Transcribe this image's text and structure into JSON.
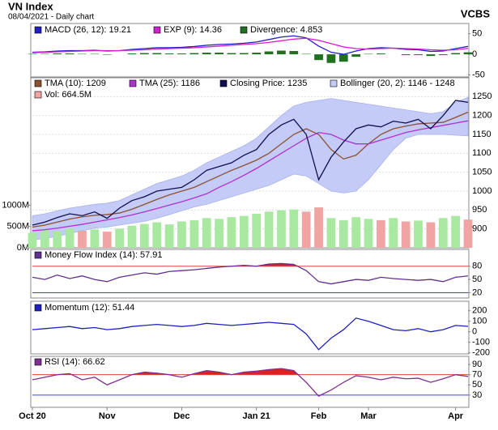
{
  "header": {
    "title": "VN Index",
    "subtitle": "08/04/2021 - Daily chart",
    "source": "VCBS"
  },
  "chart_data": [
    {
      "type": "line",
      "ylim": [
        -55,
        75
      ],
      "yticks": [
        -50,
        0,
        50
      ],
      "series": [
        {
          "name": "MACD (26, 12): 19.21",
          "color": "#2020c0",
          "values": [
            5,
            6,
            8,
            9,
            9,
            10,
            8,
            9,
            12,
            14,
            16,
            16,
            17,
            19,
            22,
            24,
            25,
            27,
            30,
            36,
            42,
            45,
            40,
            20,
            5,
            0,
            8,
            14,
            16,
            15,
            12,
            11,
            7,
            8,
            14,
            19.21
          ]
        },
        {
          "name": "EXP (9): 14.36",
          "color": "#d020d0",
          "values": [
            4,
            5,
            6,
            7,
            8,
            9,
            9,
            9,
            10,
            11,
            13,
            14,
            15,
            16,
            18,
            20,
            22,
            24,
            26,
            29,
            33,
            37,
            39,
            34,
            26,
            18,
            14,
            13,
            14,
            15,
            14,
            13,
            11,
            10,
            11,
            14.36
          ]
        },
        {
          "name": "Divergence: 4.853",
          "color": "#207020",
          "type": "bar",
          "values": [
            1,
            1,
            2,
            2,
            1,
            1,
            -1,
            0,
            2,
            3,
            3,
            2,
            2,
            3,
            4,
            4,
            3,
            3,
            4,
            7,
            9,
            8,
            1,
            -14,
            -21,
            -18,
            -6,
            1,
            2,
            0,
            -2,
            -2,
            -4,
            -2,
            3,
            4.853
          ]
        }
      ]
    },
    {
      "type": "line",
      "ylim": [
        850,
        1300
      ],
      "yticks": [
        900,
        950,
        1000,
        1050,
        1100,
        1150,
        1200,
        1250
      ],
      "grid": true,
      "y2lim": [
        0,
        4000
      ],
      "y2ticks": [
        {
          "value": 0,
          "label": "0M"
        },
        {
          "value": 500,
          "label": "500M"
        },
        {
          "value": 1000,
          "label": "1000M"
        }
      ],
      "series": [
        {
          "name": "TMA (10): 1209",
          "color": "#8b5030",
          "values": [
            905,
            910,
            918,
            926,
            932,
            936,
            938,
            942,
            952,
            965,
            978,
            990,
            1000,
            1010,
            1025,
            1040,
            1055,
            1068,
            1082,
            1100,
            1125,
            1150,
            1165,
            1150,
            1110,
            1085,
            1095,
            1125,
            1150,
            1165,
            1172,
            1178,
            1180,
            1182,
            1195,
            1209
          ]
        },
        {
          "name": "TMA (25): 1186",
          "color": "#b030d0",
          "values": [
            895,
            898,
            902,
            907,
            912,
            918,
            924,
            930,
            937,
            945,
            954,
            963,
            972,
            982,
            993,
            1010,
            1025,
            1042,
            1060,
            1080,
            1100,
            1120,
            1140,
            1155,
            1150,
            1135,
            1125,
            1125,
            1135,
            1145,
            1155,
            1162,
            1168,
            1174,
            1180,
            1186
          ]
        },
        {
          "name": "Closing Price: 1235",
          "color": "#101050",
          "values": [
            910,
            918,
            930,
            940,
            935,
            945,
            928,
            955,
            975,
            985,
            1000,
            1005,
            1010,
            1030,
            1055,
            1065,
            1075,
            1095,
            1110,
            1150,
            1175,
            1190,
            1150,
            1030,
            1090,
            1130,
            1165,
            1175,
            1170,
            1185,
            1180,
            1190,
            1165,
            1200,
            1240,
            1235
          ]
        },
        {
          "name": "Bollinger (20, 2): 1146 - 1248",
          "color": "#c4cbf6",
          "type": "band",
          "upper": [
            935,
            940,
            948,
            955,
            960,
            965,
            968,
            975,
            990,
            1005,
            1020,
            1030,
            1040,
            1055,
            1075,
            1090,
            1105,
            1120,
            1140,
            1170,
            1200,
            1225,
            1235,
            1240,
            1245,
            1240,
            1235,
            1230,
            1225,
            1220,
            1215,
            1210,
            1205,
            1210,
            1235,
            1248
          ],
          "lower": [
            870,
            875,
            880,
            888,
            895,
            902,
            905,
            910,
            915,
            920,
            928,
            938,
            948,
            958,
            965,
            975,
            985,
            995,
            1005,
            1015,
            1030,
            1045,
            1040,
            1020,
            1000,
            995,
            1000,
            1030,
            1070,
            1110,
            1140,
            1150,
            1150,
            1150,
            1148,
            1146
          ]
        },
        {
          "name": "Vol: 664.5M",
          "color": "#f0a4a4",
          "type": "bar",
          "axis": "y2",
          "values": [
            350,
            420,
            380,
            450,
            400,
            430,
            380,
            450,
            520,
            560,
            600,
            550,
            620,
            650,
            700,
            680,
            720,
            750,
            800,
            850,
            880,
            900,
            850,
            950,
            700,
            650,
            720,
            680,
            650,
            700,
            620,
            640,
            600,
            700,
            750,
            664.5
          ],
          "colors": [
            "#a8e8a0",
            "#a8e8a0",
            "#a8e8a0",
            "#a8e8a0",
            "#f0a4a4",
            "#a8e8a0",
            "#f0a4a4",
            "#a8e8a0",
            "#a8e8a0",
            "#a8e8a0",
            "#a8e8a0",
            "#a8e8a0",
            "#a8e8a0",
            "#a8e8a0",
            "#a8e8a0",
            "#a8e8a0",
            "#a8e8a0",
            "#a8e8a0",
            "#a8e8a0",
            "#a8e8a0",
            "#a8e8a0",
            "#a8e8a0",
            "#f0a4a4",
            "#f0a4a4",
            "#a8e8a0",
            "#a8e8a0",
            "#a8e8a0",
            "#a8e8a0",
            "#f0a4a4",
            "#a8e8a0",
            "#f0a4a4",
            "#a8e8a0",
            "#f0a4a4",
            "#a8e8a0",
            "#a8e8a0",
            "#f0a4a4"
          ]
        }
      ]
    },
    {
      "type": "line",
      "ylim": [
        8,
        118
      ],
      "yticks": [
        20,
        50,
        80
      ],
      "upper_level": 80,
      "lower_level": 20,
      "fill_color": "#e02020",
      "series": [
        {
          "name": "Money Flow Index (14): 57.91",
          "color": "#603090",
          "values": [
            55,
            50,
            60,
            52,
            58,
            50,
            45,
            55,
            60,
            65,
            62,
            68,
            70,
            72,
            75,
            78,
            80,
            82,
            80,
            85,
            86,
            84,
            70,
            45,
            40,
            45,
            50,
            48,
            55,
            52,
            50,
            48,
            50,
            45,
            55,
            57.91
          ]
        }
      ]
    },
    {
      "type": "line",
      "ylim": [
        -210,
        290
      ],
      "yticks": [
        -200,
        -100,
        0,
        100,
        200
      ],
      "series": [
        {
          "name": "Momentum (12): 51.44",
          "color": "#2020c0",
          "values": [
            20,
            30,
            40,
            50,
            30,
            40,
            20,
            30,
            50,
            60,
            70,
            60,
            50,
            60,
            80,
            70,
            60,
            70,
            80,
            90,
            80,
            70,
            -20,
            -170,
            -60,
            20,
            130,
            100,
            60,
            20,
            10,
            30,
            0,
            20,
            60,
            51.44
          ]
        }
      ]
    },
    {
      "type": "line",
      "ylim": [
        6,
        106
      ],
      "yticks": [
        30,
        50,
        70,
        90
      ],
      "upper_level": 70,
      "lower_level": 30,
      "fill_color": "#e02020",
      "categories": [
        "Oct 20",
        null,
        null,
        null,
        null,
        null,
        "Nov",
        null,
        null,
        null,
        null,
        null,
        "Dec",
        null,
        null,
        null,
        null,
        null,
        "Jan 21",
        null,
        null,
        null,
        null,
        "Feb",
        null,
        null,
        null,
        "Mar",
        null,
        null,
        null,
        null,
        null,
        null,
        "Apr",
        null
      ],
      "series": [
        {
          "name": "RSI (14): 66.62",
          "color": "#803090",
          "values": [
            60,
            65,
            70,
            72,
            60,
            65,
            50,
            60,
            70,
            75,
            73,
            70,
            65,
            72,
            78,
            75,
            70,
            75,
            77,
            80,
            82,
            78,
            55,
            28,
            40,
            55,
            68,
            65,
            60,
            65,
            62,
            63,
            55,
            62,
            70,
            66.62
          ]
        }
      ]
    }
  ]
}
